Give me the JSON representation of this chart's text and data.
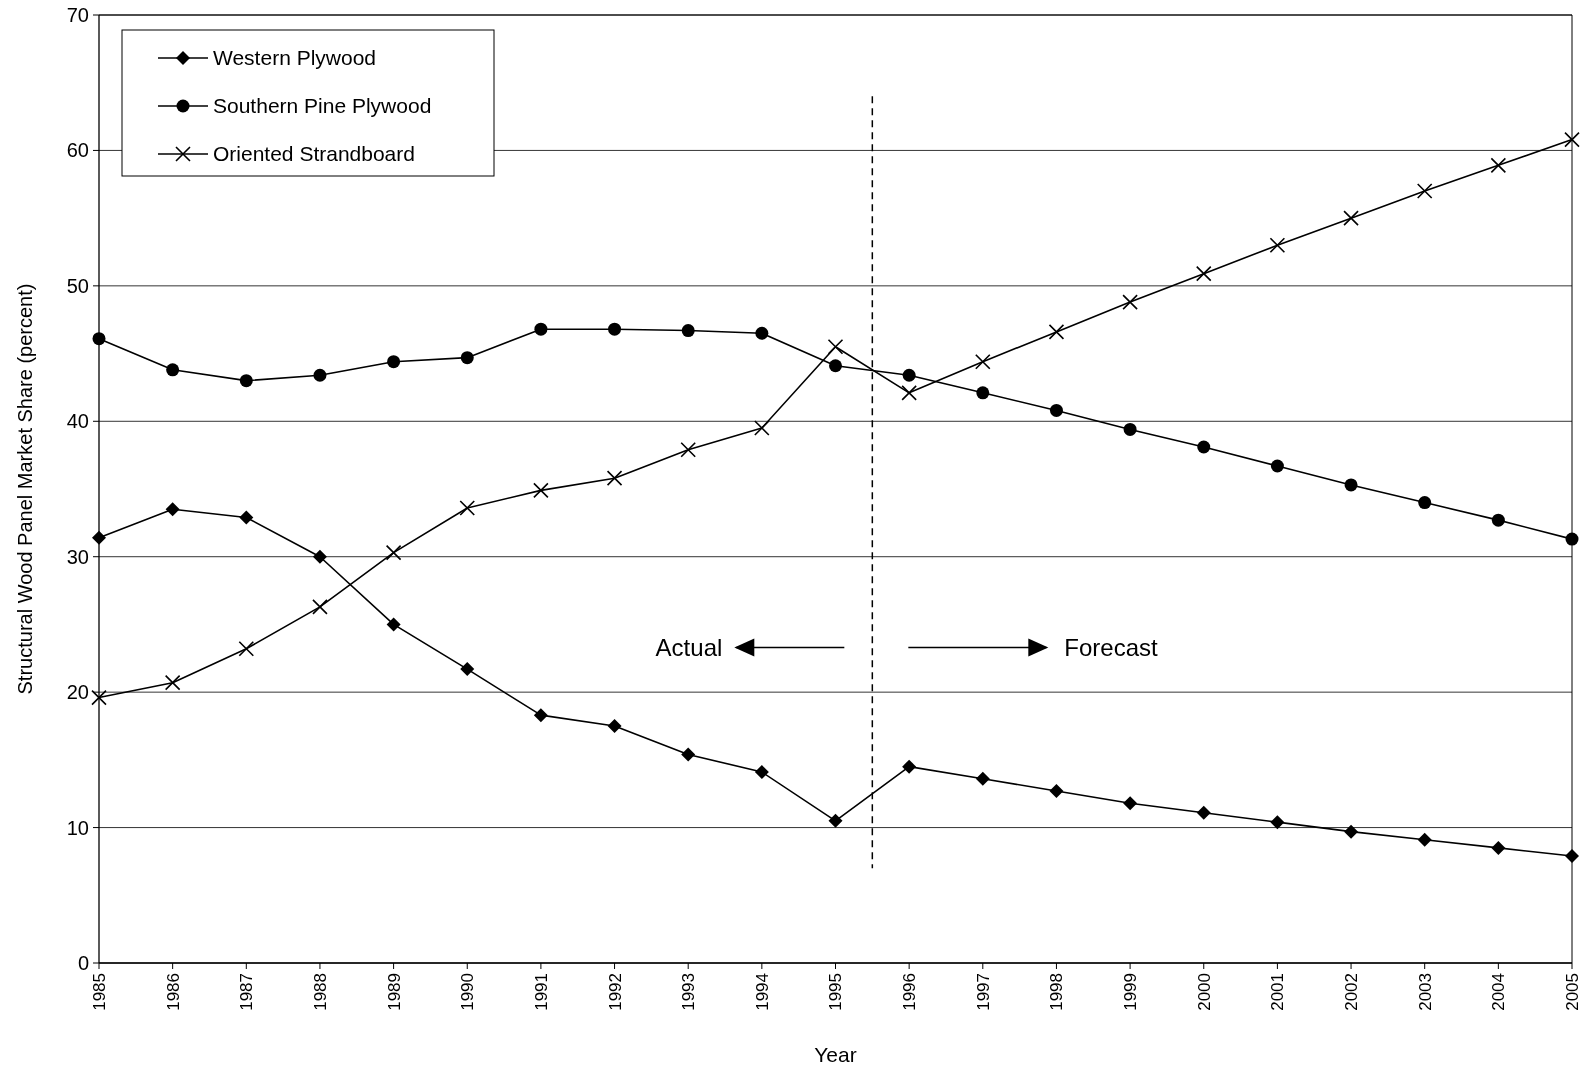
{
  "chart_data": {
    "type": "line",
    "xlabel": "Year",
    "ylabel": "Structural Wood Panel Market Share (percent)",
    "x": [
      1985,
      1986,
      1987,
      1988,
      1989,
      1990,
      1991,
      1992,
      1993,
      1994,
      1995,
      1996,
      1997,
      1998,
      1999,
      2000,
      2001,
      2002,
      2003,
      2004,
      2005
    ],
    "series": [
      {
        "name": "Western Plywood",
        "color": "#000000",
        "marker": "diamond",
        "values": [
          31.4,
          33.5,
          32.9,
          30.0,
          25.0,
          21.7,
          18.3,
          17.5,
          15.4,
          14.1,
          10.5,
          14.5,
          13.6,
          12.7,
          11.8,
          11.1,
          10.4,
          9.7,
          9.1,
          8.5,
          7.9
        ]
      },
      {
        "name": "Southern Pine Plywood",
        "color": "#000000",
        "marker": "circle",
        "values": [
          46.1,
          43.8,
          43.0,
          43.4,
          44.4,
          44.7,
          46.8,
          46.8,
          46.7,
          46.5,
          44.1,
          43.4,
          42.1,
          40.8,
          39.4,
          38.1,
          36.7,
          35.3,
          34.0,
          32.7,
          31.3
        ]
      },
      {
        "name": "Oriented Strandboard",
        "color": "#000000",
        "marker": "cross",
        "values": [
          19.6,
          20.7,
          23.2,
          26.3,
          30.3,
          33.6,
          34.9,
          35.8,
          37.9,
          39.5,
          45.5,
          42.1,
          44.4,
          46.6,
          48.8,
          50.9,
          53.0,
          55.0,
          57.0,
          58.9,
          60.8
        ]
      }
    ],
    "xlim": [
      1985,
      2005
    ],
    "xticks": [
      1985,
      1986,
      1987,
      1988,
      1989,
      1990,
      1991,
      1992,
      1993,
      1994,
      1995,
      1996,
      1997,
      1998,
      1999,
      2000,
      2001,
      2002,
      2003,
      2004,
      2005
    ],
    "ylim": [
      0,
      70
    ],
    "yticks": [
      0,
      10,
      20,
      30,
      40,
      50,
      60,
      70
    ],
    "grid": "y",
    "legend": "top left",
    "ref_lines": [
      {
        "axis": "x",
        "value": 1995.5,
        "line_style": "dashed",
        "color": "#000000"
      }
    ],
    "annotations": [
      "Actual",
      "Forecast"
    ]
  }
}
